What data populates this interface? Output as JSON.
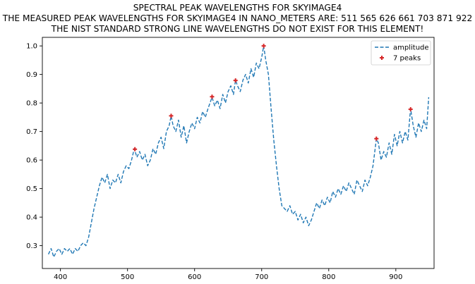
{
  "titles": {
    "line1": "SPECTRAL PEAK WAVELENGTHS FOR SKYIMAGE4",
    "line2": "THE MEASURED PEAK WAVELENGTHS FOR SKYIMAGE4 IN NANO_METERS ARE: 511 565 626 661 703 871 922",
    "line3": "THE NIST STANDARD STRONG LINE WAVELENGTHS DO NOT EXIST FOR THIS ELEMENT!"
  },
  "chart_data": {
    "type": "line",
    "xlim": [
      373,
      957
    ],
    "ylim": [
      0.22,
      1.03
    ],
    "x_ticks": [
      400,
      500,
      600,
      700,
      800,
      900
    ],
    "y_ticks": [
      0.3,
      0.4,
      0.5,
      0.6,
      0.7,
      0.8,
      0.9,
      1.0
    ],
    "y_tick_labels": [
      "0.3",
      "0.4",
      "0.5",
      "0.6",
      "0.7",
      "0.8",
      "0.9",
      "1.0"
    ],
    "grid": false,
    "legend_position": "top-right",
    "colors": {
      "series": "#1f77b4",
      "peaks": "#d62728",
      "axes": "#000000"
    },
    "series": [
      {
        "name": "amplitude",
        "style": "dashed",
        "x": [
          382,
          386,
          390,
          394,
          398,
          402,
          406,
          410,
          414,
          418,
          422,
          426,
          430,
          434,
          438,
          442,
          446,
          450,
          454,
          458,
          462,
          466,
          470,
          474,
          478,
          482,
          486,
          490,
          494,
          498,
          502,
          506,
          510,
          514,
          518,
          522,
          526,
          530,
          534,
          538,
          542,
          546,
          550,
          554,
          558,
          562,
          565,
          568,
          572,
          576,
          580,
          584,
          588,
          592,
          596,
          600,
          604,
          608,
          612,
          616,
          620,
          626,
          630,
          634,
          638,
          642,
          646,
          650,
          654,
          658,
          661,
          664,
          668,
          672,
          676,
          680,
          684,
          688,
          692,
          696,
          700,
          703,
          706,
          710,
          714,
          718,
          722,
          726,
          730,
          734,
          738,
          742,
          746,
          750,
          754,
          758,
          762,
          766,
          770,
          774,
          778,
          782,
          786,
          790,
          794,
          798,
          802,
          806,
          810,
          814,
          818,
          822,
          826,
          830,
          834,
          838,
          842,
          846,
          850,
          854,
          858,
          862,
          866,
          871,
          874,
          878,
          882,
          886,
          890,
          894,
          898,
          902,
          906,
          910,
          914,
          918,
          922,
          926,
          930,
          934,
          938,
          942,
          946,
          949
        ],
        "values": [
          0.27,
          0.29,
          0.26,
          0.28,
          0.29,
          0.27,
          0.29,
          0.28,
          0.29,
          0.27,
          0.29,
          0.28,
          0.3,
          0.31,
          0.3,
          0.33,
          0.38,
          0.43,
          0.47,
          0.51,
          0.54,
          0.52,
          0.55,
          0.5,
          0.53,
          0.52,
          0.55,
          0.52,
          0.56,
          0.58,
          0.57,
          0.6,
          0.64,
          0.61,
          0.63,
          0.6,
          0.62,
          0.58,
          0.6,
          0.64,
          0.62,
          0.66,
          0.68,
          0.64,
          0.7,
          0.72,
          0.755,
          0.72,
          0.7,
          0.74,
          0.68,
          0.72,
          0.66,
          0.7,
          0.73,
          0.71,
          0.75,
          0.73,
          0.77,
          0.75,
          0.78,
          0.82,
          0.79,
          0.81,
          0.78,
          0.83,
          0.8,
          0.84,
          0.86,
          0.83,
          0.88,
          0.86,
          0.84,
          0.88,
          0.9,
          0.87,
          0.92,
          0.89,
          0.94,
          0.92,
          0.96,
          1.0,
          0.95,
          0.9,
          0.78,
          0.67,
          0.58,
          0.5,
          0.44,
          0.43,
          0.42,
          0.44,
          0.41,
          0.42,
          0.39,
          0.41,
          0.38,
          0.4,
          0.37,
          0.39,
          0.42,
          0.45,
          0.43,
          0.46,
          0.44,
          0.47,
          0.45,
          0.49,
          0.47,
          0.5,
          0.48,
          0.51,
          0.49,
          0.52,
          0.5,
          0.48,
          0.53,
          0.51,
          0.49,
          0.53,
          0.51,
          0.54,
          0.58,
          0.675,
          0.66,
          0.6,
          0.63,
          0.61,
          0.66,
          0.62,
          0.69,
          0.65,
          0.7,
          0.66,
          0.7,
          0.67,
          0.78,
          0.72,
          0.68,
          0.73,
          0.7,
          0.74,
          0.71,
          0.82
        ]
      },
      {
        "name": "7 peaks",
        "style": "markers",
        "x": [
          511,
          565,
          626,
          661,
          703,
          871,
          922
        ],
        "values": [
          0.638,
          0.755,
          0.822,
          0.879,
          1.0,
          0.675,
          0.778
        ]
      }
    ]
  }
}
